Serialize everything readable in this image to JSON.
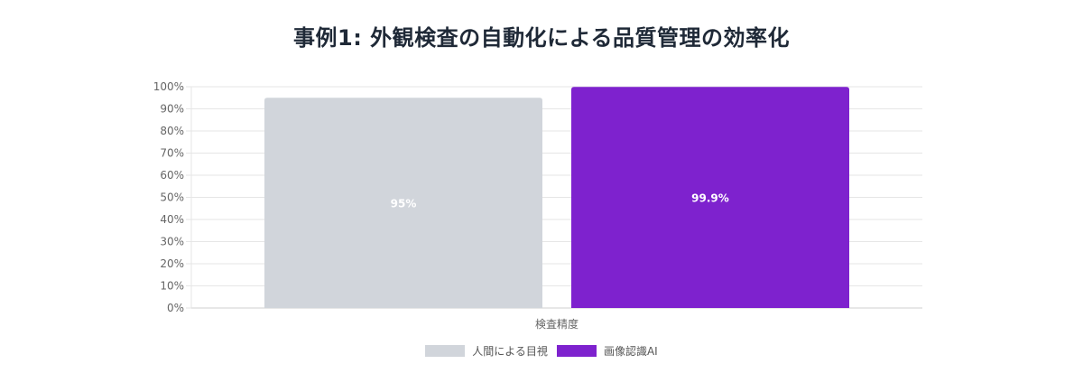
{
  "chart_data": {
    "type": "bar",
    "title": "事例1: 外観検査の自動化による品質管理の効率化",
    "categories": [
      "検査精度"
    ],
    "series": [
      {
        "name": "人間による目視",
        "values": [
          95
        ],
        "label": "95%",
        "color": "#d1d5db"
      },
      {
        "name": "画像認識AI",
        "values": [
          99.9
        ],
        "label": "99.9%",
        "color": "#7e22ce"
      }
    ],
    "ylim": [
      0,
      100
    ],
    "yticks": [
      "0%",
      "10%",
      "20%",
      "30%",
      "40%",
      "50%",
      "60%",
      "70%",
      "80%",
      "90%",
      "100%"
    ],
    "xlabel": "",
    "ylabel": "",
    "grid": true,
    "legend_position": "bottom"
  }
}
